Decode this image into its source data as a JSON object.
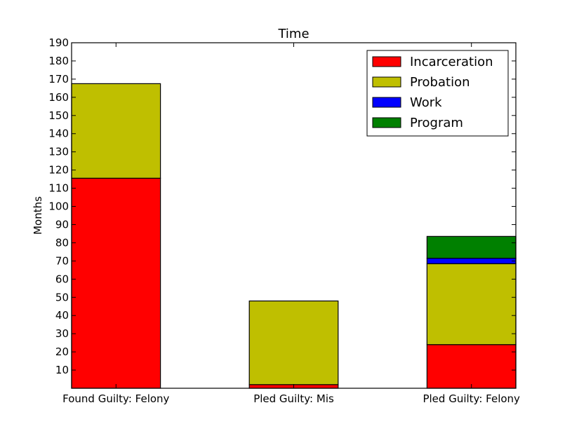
{
  "chart_data": {
    "type": "bar",
    "stacked": true,
    "title": "Time",
    "xlabel": "",
    "ylabel": "Months",
    "ylim": [
      0,
      190
    ],
    "yticks": [
      10,
      20,
      30,
      40,
      50,
      60,
      70,
      80,
      90,
      100,
      110,
      120,
      130,
      140,
      150,
      160,
      170,
      180,
      190
    ],
    "categories": [
      "Found Guilty: Felony",
      "Pled Guilty: Mis",
      "Pled Guilty: Felony"
    ],
    "series": [
      {
        "name": "Incarceration",
        "color": "#ff0000",
        "values": [
          115.5,
          2,
          24
        ]
      },
      {
        "name": "Probation",
        "color": "#bfbf00",
        "values": [
          52,
          46,
          44.5
        ]
      },
      {
        "name": "Work",
        "color": "#0000ff",
        "values": [
          0,
          0,
          3
        ]
      },
      {
        "name": "Program",
        "color": "#008000",
        "values": [
          0,
          0,
          12
        ]
      }
    ],
    "legend_position": "top-right",
    "grid": false
  }
}
